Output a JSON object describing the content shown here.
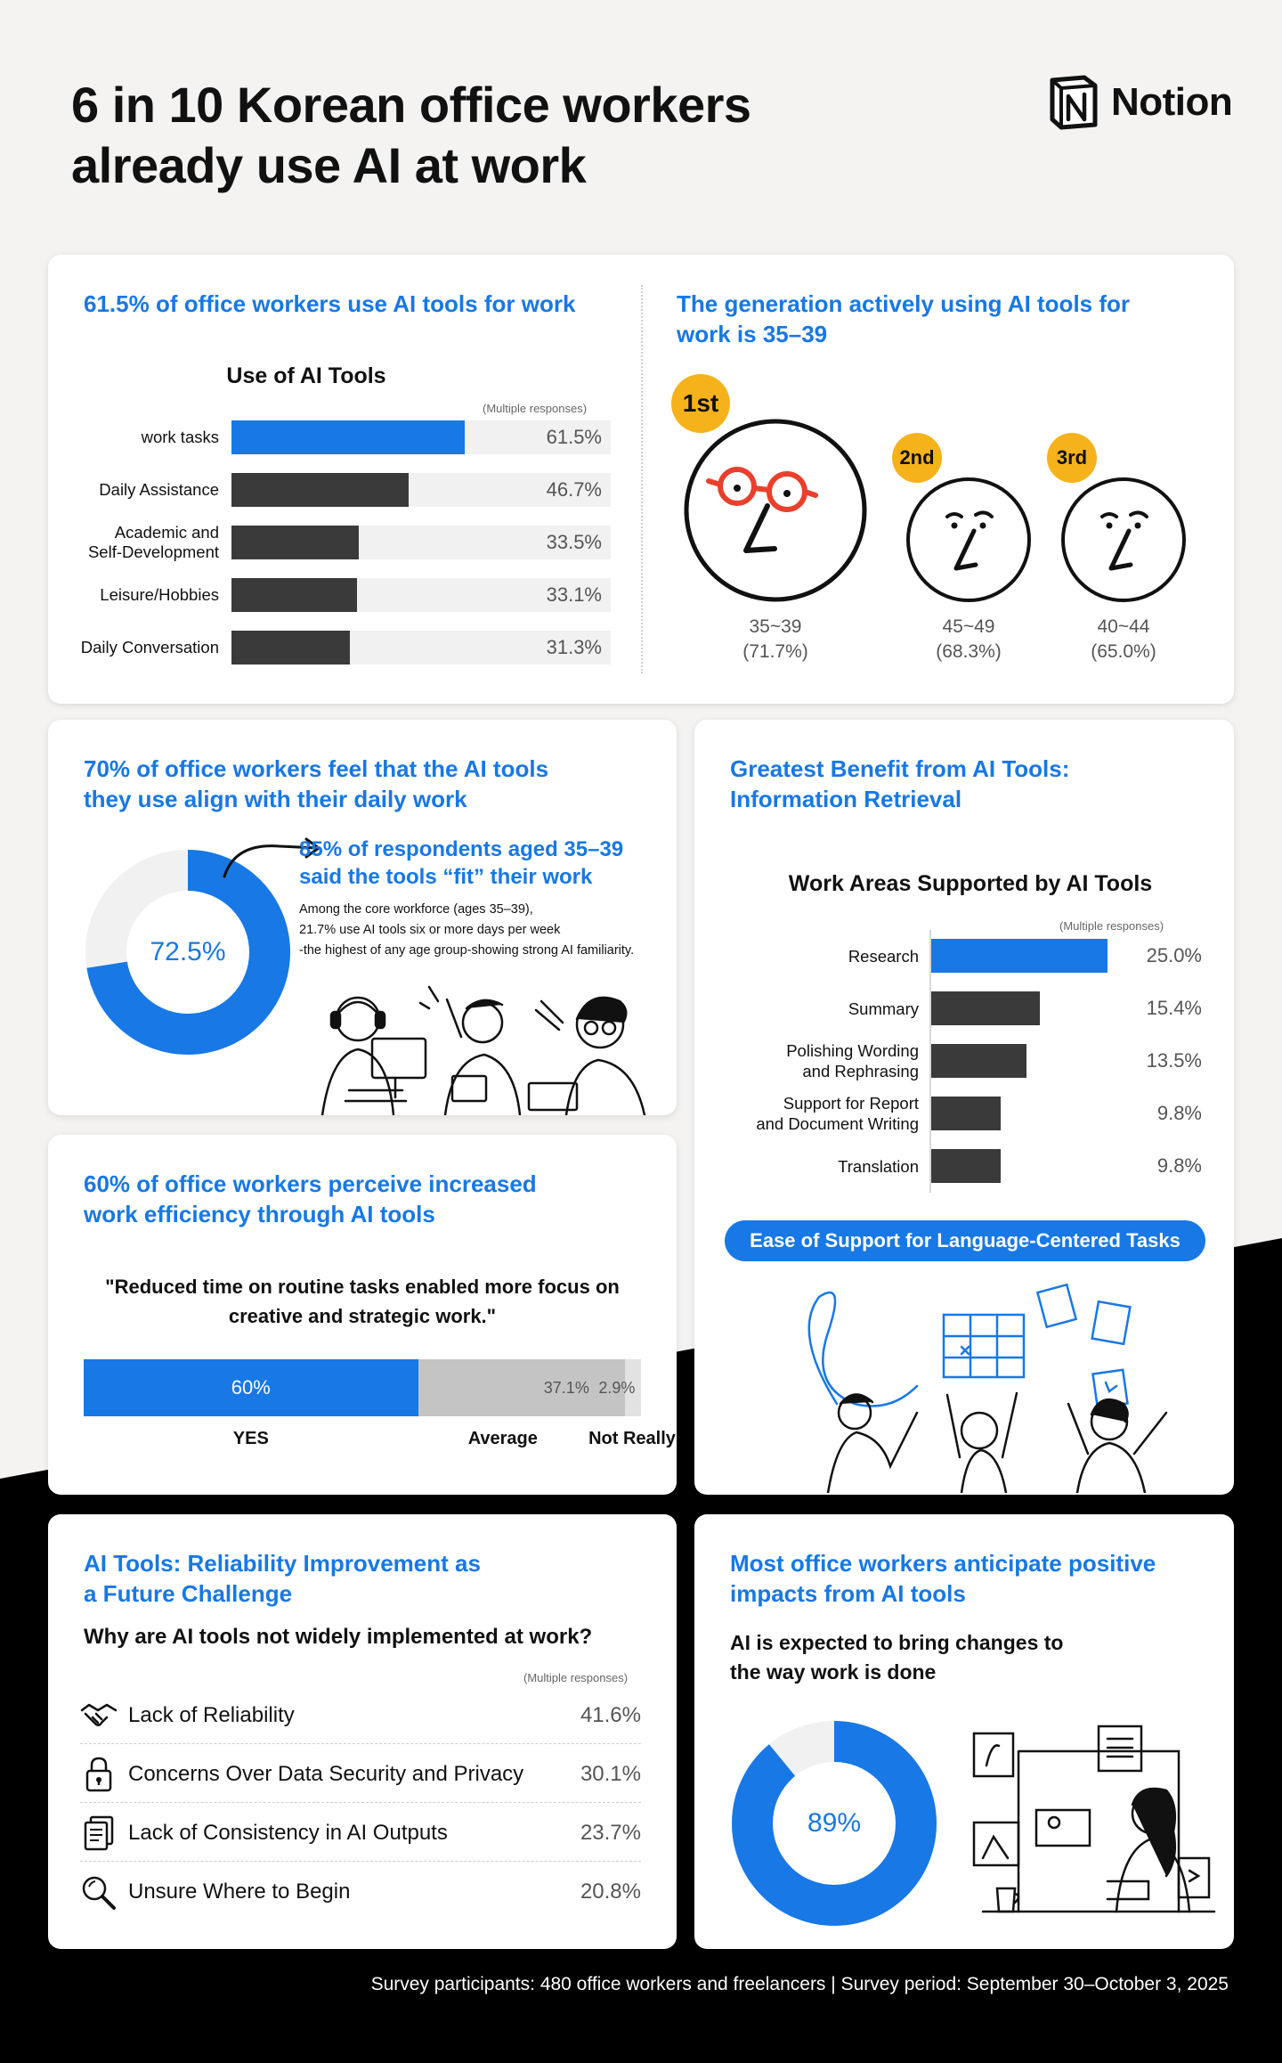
{
  "header": {
    "title": "6 in 10 Korean office workers\nalready use AI at work",
    "brand": "Notion",
    "logo_icon": "notion-logo-icon"
  },
  "usage": {
    "heading": "61.5% of office workers use AI tools for work",
    "chart_title": "Use of AI Tools",
    "note": "(Multiple responses)"
  },
  "generation": {
    "heading": "The generation actively using AI tools for\nwork is 35–39",
    "ranks": [
      {
        "badge": "1st",
        "age": "35~39",
        "pct": "(71.7%)"
      },
      {
        "badge": "2nd",
        "age": "45~49",
        "pct": "(68.3%)"
      },
      {
        "badge": "3rd",
        "age": "40~44",
        "pct": "(65.0%)"
      }
    ]
  },
  "alignment": {
    "heading": "70% of office workers feel that the AI tools\nthey use align with their daily work",
    "donut_label": "72.5%",
    "callout_title": "85% of respondents aged 35–39\nsaid the tools “fit” their work",
    "callout_body": "Among the core workforce (ages 35–39),\n21.7% use AI tools six or more days per week\n-the highest of any age group-showing strong AI familiarity."
  },
  "benefit": {
    "heading": "Greatest Benefit from AI Tools:\nInformation Retrieval",
    "chart_title": "Work Areas Supported by AI Tools",
    "note": "(Multiple responses)",
    "pill": "Ease of Support for Language-Centered Tasks"
  },
  "efficiency": {
    "heading": "60% of office workers perceive increased\nwork efficiency through AI tools",
    "quote": "\"Reduced time on routine tasks enabled more focus on\ncreative and strategic work.\""
  },
  "reliability": {
    "heading": "AI Tools: Reliability Improvement as\na Future Challenge",
    "question": "Why are AI tools not widely implemented at work?",
    "note": "(Multiple responses)",
    "reasons": [
      {
        "label": "Lack of Reliability",
        "value": "41.6%",
        "icon": "handshake-icon"
      },
      {
        "label": "Concerns Over Data Security and Privacy",
        "value": "30.1%",
        "icon": "lock-icon"
      },
      {
        "label": "Lack of Consistency in AI Outputs",
        "value": "23.7%",
        "icon": "documents-icon"
      },
      {
        "label": "Unsure Where to Begin",
        "value": "20.8%",
        "icon": "magnifier-icon"
      }
    ]
  },
  "impact": {
    "heading": "Most office workers anticipate positive\nimpacts from AI tools",
    "subheading": "AI is expected to bring changes to\nthe way work is done",
    "donut_label": "89%"
  },
  "footer": "Survey participants: 480 office workers and freelancers | Survey period: September 30–October 3, 2025",
  "colors": {
    "accent": "#1778e6",
    "dark_bar": "#3a3a3a",
    "track": "#f1f1f1",
    "badge": "#f6b21b"
  },
  "chart_data": [
    {
      "type": "bar",
      "title": "Use of AI Tools",
      "orientation": "horizontal",
      "categories": [
        "work tasks",
        "Daily Assistance",
        "Academic and\nSelf-Development",
        "Leisure/Hobbies",
        "Daily Conversation"
      ],
      "values": [
        61.5,
        46.7,
        33.5,
        33.1,
        31.3
      ],
      "value_labels": [
        "61.5%",
        "46.7%",
        "33.5%",
        "33.1%",
        "31.3%"
      ],
      "xlim": [
        0,
        100
      ]
    },
    {
      "type": "bar",
      "title": "Work Areas Supported by AI Tools",
      "orientation": "horizontal",
      "categories": [
        "Research",
        "Summary",
        "Polishing Wording\nand Rephrasing",
        "Support for Report\nand Document Writing",
        "Translation"
      ],
      "values": [
        25.0,
        15.4,
        13.5,
        9.8,
        9.8
      ],
      "value_labels": [
        "25.0%",
        "15.4%",
        "13.5%",
        "9.8%",
        "9.8%"
      ],
      "xlim": [
        0,
        25
      ]
    },
    {
      "type": "pie",
      "style": "donut",
      "categories": [
        "align",
        "other"
      ],
      "values": [
        72.5,
        27.5
      ],
      "label": "72.5%"
    },
    {
      "type": "bar",
      "style": "stacked-100",
      "categories": [
        "YES",
        "Average",
        "Not Really"
      ],
      "values": [
        60,
        37.1,
        2.9
      ],
      "value_labels": [
        "60%",
        "37.1%",
        "2.9%"
      ]
    },
    {
      "type": "pie",
      "style": "donut",
      "categories": [
        "positive",
        "other"
      ],
      "values": [
        89,
        11
      ],
      "label": "89%"
    }
  ]
}
